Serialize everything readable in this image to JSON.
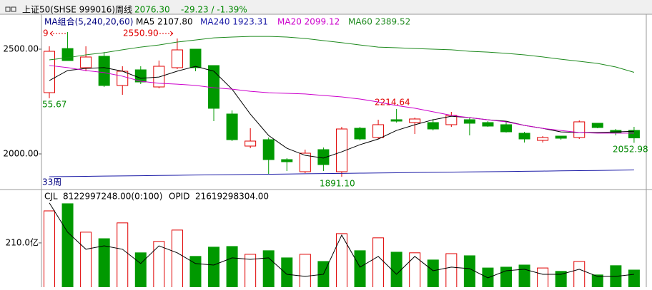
{
  "header": {
    "title": "上证50(SHSE 999016)周线",
    "price": "2076.30",
    "change": "-29.23 / -1.39%"
  },
  "chart_data": [
    {
      "type": "candlestick",
      "legend_title": "MA组合(5,240,20,60)",
      "categories": [
        null,
        null,
        null,
        null,
        null,
        null,
        null,
        null,
        null,
        null,
        null,
        null,
        null,
        null,
        null,
        null,
        null,
        null,
        null,
        null,
        null,
        null,
        null,
        null,
        null,
        null,
        null,
        null,
        null,
        null,
        null,
        null,
        null
      ],
      "open": [
        2292.5,
        2503,
        2411.6,
        2466,
        2326.5,
        2401.4,
        2319.7,
        2411.6,
        2500,
        2421.8,
        2190.5,
        2037.4,
        2068,
        1972.8,
        1915,
        2020.4,
        1915,
        2122.4,
        2078.2,
        2163.3,
        2149.7,
        2149.7,
        2139.5,
        2163.3,
        2149.7,
        2139.5,
        2098.6,
        2064.6,
        2085,
        2078.2,
        2146.3,
        2112.2,
        2112.2
      ],
      "high": [
        2513.6,
        2581.6,
        2513.6,
        2486.4,
        2418.4,
        2418.4,
        2445.6,
        2550.9,
        2500,
        2421.8,
        2207.5,
        2122.4,
        2078.2,
        1979.6,
        2020.4,
        2030.6,
        2129.3,
        2129.3,
        2163.3,
        2214.64,
        2173.5,
        2166.7,
        2200.7,
        2173.5,
        2156.5,
        2156.5,
        2105.4,
        2085,
        2085,
        2159.9,
        2146.3,
        2119,
        2129.3
      ],
      "low": [
        2265.67,
        2445.6,
        2394.6,
        2319.7,
        2282.3,
        2333.3,
        2312.9,
        2404.8,
        2394.6,
        2156.5,
        2061.2,
        2027.2,
        1901.4,
        1918.4,
        1908.2,
        1918.4,
        1891.1,
        2064.6,
        2071.4,
        2149.7,
        2095.2,
        2112.2,
        2129.3,
        2088.4,
        2129.3,
        2102,
        2054.4,
        2054.4,
        2068,
        2071.4,
        2122.4,
        2088.4,
        2052.98
      ],
      "close": [
        2489.8,
        2445.6,
        2462.6,
        2326.5,
        2394.6,
        2343.5,
        2418.4,
        2496.6,
        2411.6,
        2217.7,
        2068,
        2061.2,
        1972.8,
        1962.6,
        2003.4,
        1949,
        2119,
        2071.4,
        2139.5,
        2156.5,
        2166.7,
        2119,
        2183.7,
        2146.3,
        2132.7,
        2105.4,
        2071.4,
        2078.2,
        2074.8,
        2153.1,
        2125.9,
        2102,
        2076.3
      ],
      "up_color": "#e00000",
      "down_color": "#009900",
      "ylim": [
        1833.3,
        2666.7
      ],
      "yticks": [
        {
          "value": 2000,
          "label": "2000.00"
        },
        {
          "value": 2500,
          "label": "2500.00"
        }
      ],
      "series": [
        {
          "name": "MA5 2107.80",
          "color": "#000000",
          "values": [
            2350,
            2398,
            2408,
            2412,
            2395,
            2361,
            2367,
            2395,
            2418,
            2395,
            2309,
            2190,
            2088,
            2027,
            1993,
            1980,
            2010,
            2044,
            2071,
            2112,
            2139,
            2163,
            2180,
            2173,
            2163,
            2156,
            2136,
            2122,
            2105,
            2102,
            2102,
            2105,
            2107.8
          ]
        },
        {
          "name": "MA240 1923.31",
          "color": "#1a1aa6",
          "values": [
            1891,
            1892,
            1893,
            1894,
            1895,
            1896,
            1897,
            1898,
            1899,
            1900,
            1901,
            1902,
            1903,
            1904,
            1905,
            1906,
            1907,
            1908,
            1909,
            1910,
            1911,
            1912,
            1913,
            1914,
            1915,
            1916,
            1917,
            1918,
            1919,
            1920,
            1921,
            1922,
            1923.31
          ]
        },
        {
          "name": "MA20 2099.12",
          "color": "#cc00cc",
          "values": [
            2422,
            2412,
            2398,
            2388,
            2371,
            2347,
            2337,
            2333,
            2327,
            2316,
            2309,
            2299,
            2292,
            2289,
            2286,
            2279,
            2272,
            2262,
            2248,
            2231,
            2218,
            2201,
            2184,
            2173,
            2163,
            2153,
            2136,
            2122,
            2112,
            2102,
            2099,
            2099,
            2099.12
          ]
        },
        {
          "name": "MA60 2389.52",
          "color": "#1f8a1f",
          "values": [
            2449,
            2459,
            2473,
            2483,
            2497,
            2510,
            2520,
            2534,
            2544,
            2554,
            2558,
            2561,
            2561,
            2558,
            2551,
            2541,
            2531,
            2520,
            2510,
            2507,
            2503,
            2500,
            2497,
            2490,
            2486,
            2480,
            2473,
            2463,
            2452,
            2442,
            2432,
            2415,
            2389.52
          ]
        }
      ],
      "annotations": [
        {
          "text": "9"
        },
        {
          "text": "2550.90"
        },
        {
          "text": "2214.64"
        },
        {
          "text": "55.67"
        },
        {
          "text": "1891.10"
        },
        {
          "text": "2052.98"
        },
        {
          "text": "33周"
        }
      ]
    },
    {
      "type": "bar",
      "legend": [
        "CJL",
        "8122997248.00(0:100)",
        "OPID",
        "21619298304.00"
      ],
      "categories": [
        null,
        null,
        null,
        null,
        null,
        null,
        null,
        null,
        null,
        null,
        null,
        null,
        null,
        null,
        null,
        null,
        null,
        null,
        null,
        null,
        null,
        null,
        null,
        null,
        null,
        null,
        null,
        null,
        null,
        null,
        null,
        null,
        null
      ],
      "values": [
        362,
        396,
        261,
        230,
        305,
        163,
        217,
        271,
        146,
        190,
        193,
        156,
        173,
        139,
        156,
        122,
        254,
        173,
        234,
        166,
        163,
        129,
        159,
        149,
        91,
        95,
        105,
        91,
        75,
        122,
        58,
        102,
        81.2
      ],
      "ylim": [
        0,
        460
      ],
      "yticks": [
        {
          "value": 210,
          "label": "210.0亿"
        }
      ],
      "line": {
        "color": "#000000",
        "values": [
          400,
          261,
          180,
          196,
          180,
          112,
          196,
          163,
          112,
          105,
          139,
          132,
          139,
          61,
          51,
          61,
          247,
          95,
          146,
          61,
          146,
          78,
          95,
          88,
          44,
          78,
          85,
          61,
          61,
          85,
          51,
          51,
          61
        ]
      }
    }
  ]
}
